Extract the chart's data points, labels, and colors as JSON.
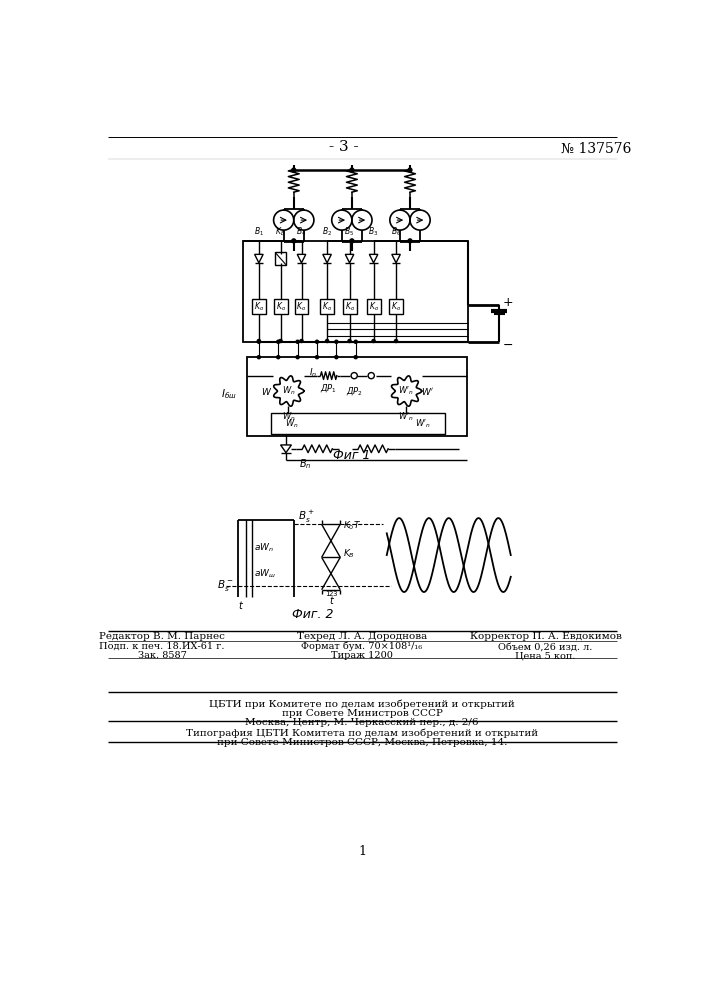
{
  "page_number": "- 3 -",
  "patent_number": "№ 137576",
  "fig1_label": "Фиг 1",
  "fig2_label": "Фиг. 2",
  "footer_line1_col1": "Редактор В. М. Парнес",
  "footer_line1_col2": "Техред Л. А. Дороднова",
  "footer_line1_col3": "Корректор П. А. Евдокимов",
  "footer_line2_col1": "Подп. к печ. 18.ИХ-61 г.",
  "footer_line2_col2": "Формат бум. 70×108¹/₁₆",
  "footer_line2_col3": "Объем 0,26 изд. л.",
  "footer_line3_col1": "Зак. 8587",
  "footer_line3_col2": "Тираж 1200",
  "footer_line3_col3": "Цена 5 коп.",
  "footer_cbti1": "ЦБТИ при Комитете по делам изобретений и открытий",
  "footer_cbti2": "при Совете Министров СССР",
  "footer_cbti3": "Москва, Центр, М. Черкасский пер., д. 2/6",
  "footer_tip1": "Типография ЦБТИ Комитета по делам изобретений и открытий",
  "footer_tip2": "при Совете Министров СССР, Москва, Петровка, 14.",
  "bg_color": "#ffffff",
  "line_color": "#000000",
  "text_color": "#000000"
}
